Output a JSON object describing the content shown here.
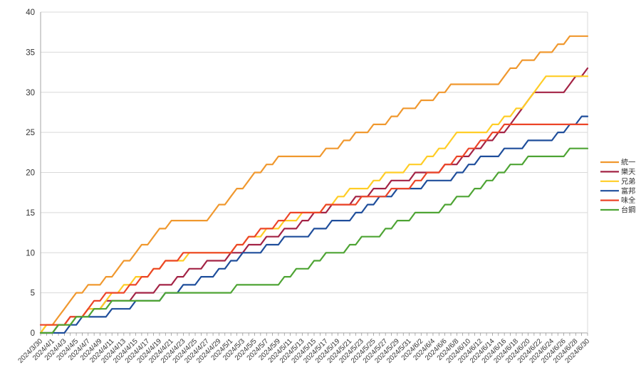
{
  "chart_data": {
    "type": "line",
    "title": "",
    "xlabel": "",
    "ylabel": "",
    "ylim": [
      0,
      40
    ],
    "y_tick_step": 5,
    "x_label_every": 2,
    "grid": "horizontal",
    "legend_position": "right",
    "x": [
      "2024/3/30",
      "2024/3/31",
      "2024/4/1",
      "2024/4/2",
      "2024/4/3",
      "2024/4/4",
      "2024/4/5",
      "2024/4/6",
      "2024/4/7",
      "2024/4/8",
      "2024/4/9",
      "2024/4/10",
      "2024/4/11",
      "2024/4/12",
      "2024/4/13",
      "2024/4/14",
      "2024/4/15",
      "2024/4/16",
      "2024/4/17",
      "2024/4/18",
      "2024/4/19",
      "2024/4/20",
      "2024/4/21",
      "2024/4/22",
      "2024/4/23",
      "2024/4/24",
      "2024/4/25",
      "2024/4/26",
      "2024/4/27",
      "2024/4/28",
      "2024/4/29",
      "2024/4/30",
      "2024/5/1",
      "2024/5/2",
      "2024/5/3",
      "2024/5/4",
      "2024/5/5",
      "2024/5/6",
      "2024/5/7",
      "2024/5/8",
      "2024/5/9",
      "2024/5/10",
      "2024/5/11",
      "2024/5/12",
      "2024/5/13",
      "2024/5/14",
      "2024/5/15",
      "2024/5/16",
      "2024/5/17",
      "2024/5/18",
      "2024/5/19",
      "2024/5/20",
      "2024/5/21",
      "2024/5/22",
      "2024/5/23",
      "2024/5/24",
      "2024/5/25",
      "2024/5/26",
      "2024/5/27",
      "2024/5/28",
      "2024/5/29",
      "2024/5/30",
      "2024/5/31",
      "2024/6/1",
      "2024/6/2",
      "2024/6/3",
      "2024/6/4",
      "2024/6/5",
      "2024/6/6",
      "2024/6/7",
      "2024/6/8",
      "2024/6/9",
      "2024/6/10",
      "2024/6/11",
      "2024/6/12",
      "2024/6/13",
      "2024/6/14",
      "2024/6/15",
      "2024/6/16",
      "2024/6/17",
      "2024/6/18",
      "2024/6/19",
      "2024/6/20",
      "2024/6/21",
      "2024/6/22",
      "2024/6/23",
      "2024/6/24",
      "2024/6/25",
      "2024/6/26",
      "2024/6/27",
      "2024/6/28",
      "2024/6/29",
      "2024/6/30"
    ],
    "series": [
      {
        "name": "統一",
        "key": "uni",
        "color": "#F0982E",
        "values": [
          0,
          1,
          1,
          2,
          3,
          4,
          5,
          5,
          6,
          6,
          6,
          7,
          7,
          8,
          9,
          9,
          10,
          11,
          11,
          12,
          13,
          13,
          14,
          14,
          14,
          14,
          14,
          14,
          14,
          15,
          16,
          16,
          17,
          18,
          18,
          19,
          20,
          20,
          21,
          21,
          22,
          22,
          22,
          22,
          22,
          22,
          22,
          22,
          23,
          23,
          23,
          24,
          24,
          25,
          25,
          25,
          26,
          26,
          26,
          27,
          27,
          28,
          28,
          28,
          29,
          29,
          29,
          30,
          30,
          31,
          31,
          31,
          31,
          31,
          31,
          31,
          31,
          31,
          32,
          33,
          33,
          34,
          34,
          34,
          35,
          35,
          35,
          36,
          36,
          37,
          37,
          37,
          37
        ]
      },
      {
        "name": "樂天",
        "key": "rakuten",
        "color": "#A32345",
        "values": [
          0,
          0,
          0,
          1,
          1,
          2,
          2,
          2,
          3,
          3,
          3,
          4,
          4,
          4,
          4,
          4,
          5,
          5,
          5,
          5,
          6,
          6,
          6,
          7,
          7,
          8,
          8,
          8,
          9,
          9,
          9,
          9,
          10,
          10,
          10,
          11,
          11,
          11,
          12,
          12,
          12,
          13,
          13,
          13,
          14,
          14,
          15,
          15,
          15,
          16,
          16,
          16,
          16,
          17,
          17,
          17,
          18,
          18,
          18,
          19,
          19,
          19,
          19,
          20,
          20,
          20,
          20,
          20,
          21,
          21,
          21,
          22,
          22,
          23,
          23,
          24,
          24,
          25,
          25,
          26,
          27,
          28,
          29,
          30,
          30,
          30,
          30,
          30,
          30,
          31,
          32,
          32,
          33
        ]
      },
      {
        "name": "兄弟",
        "key": "brothers",
        "color": "#FFCD26",
        "values": [
          0,
          1,
          1,
          1,
          1,
          1,
          2,
          2,
          3,
          3,
          3,
          4,
          5,
          5,
          6,
          6,
          7,
          7,
          7,
          8,
          8,
          9,
          9,
          9,
          9,
          10,
          10,
          10,
          10,
          10,
          10,
          10,
          10,
          11,
          11,
          12,
          12,
          12,
          13,
          13,
          13,
          14,
          14,
          14,
          15,
          15,
          15,
          15,
          16,
          16,
          17,
          17,
          18,
          18,
          18,
          18,
          19,
          19,
          20,
          20,
          20,
          20,
          21,
          21,
          21,
          22,
          22,
          23,
          23,
          24,
          25,
          25,
          25,
          25,
          25,
          25,
          26,
          26,
          27,
          27,
          28,
          28,
          29,
          30,
          31,
          32,
          32,
          32,
          32,
          32,
          32,
          32,
          32
        ]
      },
      {
        "name": "富邦",
        "key": "fubon",
        "color": "#1F4E9B",
        "values": [
          0,
          0,
          0,
          0,
          0,
          1,
          1,
          2,
          2,
          2,
          2,
          2,
          3,
          3,
          3,
          3,
          4,
          4,
          4,
          4,
          4,
          5,
          5,
          5,
          6,
          6,
          6,
          7,
          7,
          7,
          8,
          8,
          9,
          9,
          10,
          10,
          10,
          10,
          11,
          11,
          11,
          12,
          12,
          12,
          12,
          12,
          13,
          13,
          13,
          14,
          14,
          14,
          14,
          15,
          15,
          16,
          16,
          17,
          17,
          17,
          18,
          18,
          18,
          18,
          18,
          19,
          19,
          19,
          19,
          19,
          20,
          20,
          21,
          21,
          22,
          22,
          22,
          22,
          23,
          23,
          23,
          23,
          24,
          24,
          24,
          24,
          24,
          25,
          25,
          26,
          26,
          27,
          27
        ]
      },
      {
        "name": "味全",
        "key": "weichuan",
        "color": "#EC4528",
        "values": [
          1,
          1,
          1,
          1,
          1,
          2,
          2,
          2,
          3,
          4,
          4,
          5,
          5,
          5,
          5,
          6,
          6,
          7,
          7,
          8,
          8,
          9,
          9,
          9,
          10,
          10,
          10,
          10,
          10,
          10,
          10,
          10,
          10,
          11,
          11,
          12,
          12,
          13,
          13,
          13,
          14,
          14,
          15,
          15,
          15,
          15,
          15,
          15,
          16,
          16,
          16,
          16,
          16,
          16,
          17,
          17,
          17,
          17,
          17,
          18,
          18,
          18,
          18,
          19,
          19,
          20,
          20,
          20,
          21,
          21,
          22,
          22,
          23,
          23,
          24,
          24,
          25,
          25,
          26,
          26,
          26,
          26,
          26,
          26,
          26,
          26,
          26,
          26,
          26,
          26,
          26,
          26,
          26
        ]
      },
      {
        "name": "台鋼",
        "key": "tsg",
        "color": "#4EA434",
        "values": [
          0,
          0,
          0,
          1,
          1,
          1,
          2,
          2,
          2,
          3,
          3,
          3,
          4,
          4,
          4,
          4,
          4,
          4,
          4,
          4,
          4,
          5,
          5,
          5,
          5,
          5,
          5,
          5,
          5,
          5,
          5,
          5,
          5,
          6,
          6,
          6,
          6,
          6,
          6,
          6,
          6,
          7,
          7,
          8,
          8,
          8,
          9,
          9,
          10,
          10,
          10,
          10,
          11,
          11,
          12,
          12,
          12,
          12,
          13,
          13,
          14,
          14,
          14,
          15,
          15,
          15,
          15,
          15,
          16,
          16,
          17,
          17,
          17,
          18,
          18,
          19,
          19,
          20,
          20,
          21,
          21,
          21,
          22,
          22,
          22,
          22,
          22,
          22,
          22,
          23,
          23,
          23,
          23
        ]
      }
    ],
    "colors": {
      "gridline": "#D9D9D9",
      "axis_line": "#A6A6A6",
      "tick": "#8C8C8C",
      "label_text": "#333333",
      "background": "#FFFFFF"
    }
  }
}
